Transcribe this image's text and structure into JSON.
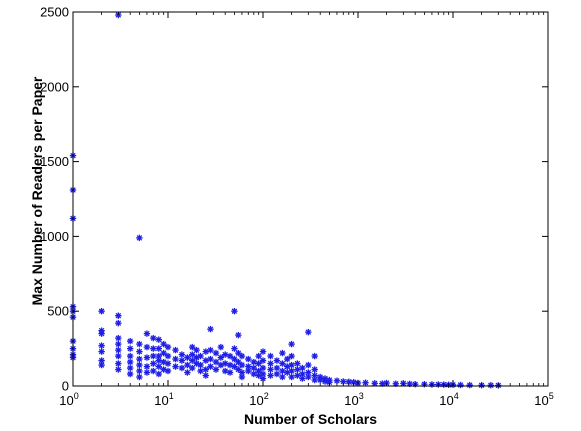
{
  "chart_data": {
    "type": "scatter",
    "title": "",
    "xlabel": "Number of Scholars",
    "ylabel": "Max Number of Readers per Paper",
    "xscale": "log",
    "xlim": [
      1,
      100000
    ],
    "ylim": [
      0,
      2500
    ],
    "x_ticks": [
      {
        "value": 1,
        "base": "10",
        "exp": "0"
      },
      {
        "value": 10,
        "base": "10",
        "exp": "1"
      },
      {
        "value": 100,
        "base": "10",
        "exp": "2"
      },
      {
        "value": 1000,
        "base": "10",
        "exp": "3"
      },
      {
        "value": 10000,
        "base": "10",
        "exp": "4"
      },
      {
        "value": 100000,
        "base": "10",
        "exp": "5"
      }
    ],
    "y_ticks": [
      {
        "value": 0,
        "label": "0"
      },
      {
        "value": 500,
        "label": "500"
      },
      {
        "value": 1000,
        "label": "1000"
      },
      {
        "value": 1500,
        "label": "1500"
      },
      {
        "value": 2000,
        "label": "2000"
      },
      {
        "value": 2500,
        "label": "2500"
      }
    ],
    "grid": false,
    "marker": "*",
    "marker_color": "#1f1fe6",
    "points": [
      [
        1,
        1540
      ],
      [
        1,
        1310
      ],
      [
        1,
        1120
      ],
      [
        1,
        530
      ],
      [
        1,
        500
      ],
      [
        1,
        460
      ],
      [
        1,
        300
      ],
      [
        1,
        250
      ],
      [
        1,
        210
      ],
      [
        1,
        190
      ],
      [
        2,
        500
      ],
      [
        2,
        370
      ],
      [
        2,
        350
      ],
      [
        2,
        270
      ],
      [
        2,
        230
      ],
      [
        2,
        170
      ],
      [
        2,
        140
      ],
      [
        3,
        2480
      ],
      [
        3,
        470
      ],
      [
        3,
        420
      ],
      [
        3,
        320
      ],
      [
        3,
        280
      ],
      [
        3,
        240
      ],
      [
        3,
        200
      ],
      [
        3,
        150
      ],
      [
        3,
        110
      ],
      [
        4,
        300
      ],
      [
        4,
        250
      ],
      [
        4,
        200
      ],
      [
        4,
        160
      ],
      [
        4,
        120
      ],
      [
        4,
        80
      ],
      [
        5,
        990
      ],
      [
        5,
        280
      ],
      [
        5,
        230
      ],
      [
        5,
        180
      ],
      [
        5,
        140
      ],
      [
        5,
        100
      ],
      [
        5,
        60
      ],
      [
        6,
        350
      ],
      [
        6,
        260
      ],
      [
        6,
        190
      ],
      [
        6,
        130
      ],
      [
        6,
        90
      ],
      [
        7,
        320
      ],
      [
        7,
        250
      ],
      [
        7,
        200
      ],
      [
        7,
        150
      ],
      [
        7,
        100
      ],
      [
        8,
        310
      ],
      [
        8,
        250
      ],
      [
        8,
        200
      ],
      [
        8,
        170
      ],
      [
        8,
        130
      ],
      [
        8,
        80
      ],
      [
        9,
        280
      ],
      [
        9,
        220
      ],
      [
        9,
        160
      ],
      [
        9,
        110
      ],
      [
        10,
        260
      ],
      [
        10,
        200
      ],
      [
        10,
        150
      ],
      [
        10,
        100
      ],
      [
        12,
        240
      ],
      [
        12,
        180
      ],
      [
        12,
        130
      ],
      [
        14,
        210
      ],
      [
        14,
        170
      ],
      [
        14,
        120
      ],
      [
        16,
        190
      ],
      [
        16,
        140
      ],
      [
        16,
        90
      ],
      [
        18,
        260
      ],
      [
        18,
        210
      ],
      [
        18,
        170
      ],
      [
        18,
        120
      ],
      [
        20,
        240
      ],
      [
        20,
        190
      ],
      [
        20,
        150
      ],
      [
        22,
        200
      ],
      [
        22,
        140
      ],
      [
        22,
        100
      ],
      [
        25,
        230
      ],
      [
        25,
        170
      ],
      [
        25,
        110
      ],
      [
        25,
        70
      ],
      [
        28,
        380
      ],
      [
        28,
        240
      ],
      [
        28,
        180
      ],
      [
        28,
        130
      ],
      [
        32,
        220
      ],
      [
        32,
        160
      ],
      [
        32,
        110
      ],
      [
        36,
        260
      ],
      [
        36,
        190
      ],
      [
        36,
        140
      ],
      [
        40,
        210
      ],
      [
        40,
        150
      ],
      [
        40,
        100
      ],
      [
        45,
        200
      ],
      [
        45,
        140
      ],
      [
        45,
        90
      ],
      [
        50,
        500
      ],
      [
        50,
        250
      ],
      [
        50,
        180
      ],
      [
        50,
        130
      ],
      [
        55,
        340
      ],
      [
        55,
        220
      ],
      [
        55,
        160
      ],
      [
        55,
        110
      ],
      [
        60,
        200
      ],
      [
        60,
        140
      ],
      [
        60,
        90
      ],
      [
        60,
        60
      ],
      [
        70,
        180
      ],
      [
        70,
        130
      ],
      [
        70,
        100
      ],
      [
        80,
        160
      ],
      [
        80,
        120
      ],
      [
        80,
        80
      ],
      [
        90,
        200
      ],
      [
        90,
        150
      ],
      [
        90,
        100
      ],
      [
        90,
        70
      ],
      [
        100,
        230
      ],
      [
        100,
        170
      ],
      [
        100,
        120
      ],
      [
        100,
        80
      ],
      [
        100,
        50
      ],
      [
        120,
        200
      ],
      [
        120,
        150
      ],
      [
        120,
        110
      ],
      [
        120,
        70
      ],
      [
        140,
        170
      ],
      [
        140,
        120
      ],
      [
        140,
        80
      ],
      [
        160,
        220
      ],
      [
        160,
        150
      ],
      [
        160,
        100
      ],
      [
        160,
        60
      ],
      [
        180,
        180
      ],
      [
        180,
        130
      ],
      [
        180,
        90
      ],
      [
        200,
        280
      ],
      [
        200,
        200
      ],
      [
        200,
        140
      ],
      [
        200,
        100
      ],
      [
        200,
        60
      ],
      [
        230,
        150
      ],
      [
        230,
        110
      ],
      [
        230,
        70
      ],
      [
        260,
        120
      ],
      [
        260,
        80
      ],
      [
        260,
        50
      ],
      [
        300,
        360
      ],
      [
        300,
        140
      ],
      [
        300,
        90
      ],
      [
        300,
        60
      ],
      [
        350,
        200
      ],
      [
        350,
        110
      ],
      [
        350,
        70
      ],
      [
        350,
        40
      ],
      [
        400,
        60
      ],
      [
        400,
        40
      ],
      [
        450,
        50
      ],
      [
        450,
        30
      ],
      [
        500,
        40
      ],
      [
        500,
        25
      ],
      [
        600,
        35
      ],
      [
        700,
        30
      ],
      [
        800,
        28
      ],
      [
        900,
        25
      ],
      [
        1000,
        20
      ],
      [
        1200,
        22
      ],
      [
        1500,
        18
      ],
      [
        1800,
        16
      ],
      [
        2000,
        20
      ],
      [
        2500,
        15
      ],
      [
        3000,
        18
      ],
      [
        3500,
        14
      ],
      [
        4000,
        12
      ],
      [
        5000,
        12
      ],
      [
        6000,
        10
      ],
      [
        7000,
        10
      ],
      [
        8000,
        9
      ],
      [
        9000,
        8
      ],
      [
        10000,
        8
      ],
      [
        12000,
        7
      ],
      [
        15000,
        6
      ],
      [
        20000,
        5
      ],
      [
        25000,
        5
      ],
      [
        30000,
        4
      ]
    ]
  }
}
